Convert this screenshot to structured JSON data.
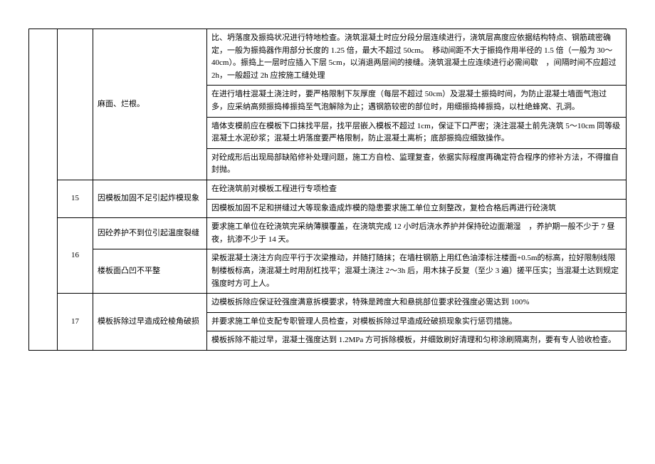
{
  "table": {
    "rows": [
      {
        "empty": "",
        "num": "",
        "issue": "麻面、烂根。",
        "content": "比、坍落度及振捣状况进行特地检查。浇筑混凝土时应分段分层连续进行，浇筑层高度应依据结构特点、钢筋疏密确定，一般为振捣器作用部分长度的 1.25 倍，最大不超过 50cm。　移动间距不大于振捣作用半径的 1.5 倍（一般为 30～40cm）。振捣上一层时应插入下层 5cm，以消退两层间的接缝。浇筑混凝土应连续进行必需间歇　，间隔时间不应超过 2h，一般超过 2h 应按施工缝处理",
        "emptyRowspan": 14,
        "numRowspan": 4,
        "issueRowspan": 4
      },
      {
        "content": "在进行墙柱混凝土浇注时，要严格限制下灰厚度（每层不超过 50cm）及混凝土振捣时间，为防止混凝土墙面气泡过多，应采纳高频振捣棒振捣至气泡解除为止；遇钢筋较密的部位时，用细振捣棒振捣，以杜绝蜂窝、孔洞。"
      },
      {
        "content": "墙体支模前应在模板下口抹找平层，找平层嵌入模板不超过 1cm，保证下口严密；浇注混凝土前先浇筑 5～10cm 同等级混凝土水泥砂浆；混凝土坍落度要严格限制，防止混凝土离析；底部振捣应细致操作。"
      },
      {
        "content": "对砼成形后出现局部缺陷修补处理问题，施工方自检、监理复查，依据实际程度再确定符合程序的修补方法，不得擅自封抛。"
      },
      {
        "num": "15",
        "issue": "因模板加固不足引起炸模现象",
        "content": "在砼浇筑前对模板工程进行专项检查",
        "numRowspan": 2,
        "issueRowspan": 2
      },
      {
        "content": "因模板加固不足和拼缝过大等现象造成炸模的隐患要求施工单位立刻整改，复检合格后再进行砼浇筑"
      },
      {
        "num": "16",
        "issue": "因砼养护不到位引起温度裂缝",
        "content": "要求施工单位在砼浇筑完采纳薄膜覆盖，在浇筑完成 12 小时后浇水养护并保持砼边面潮湿　，养护期一般不少于 7 昼夜，抗渗不少于 14 天。",
        "numRowspan": 2
      },
      {
        "issue": "楼板面凸凹不平整",
        "content": "梁板混凝土浇注方向应平行于次梁推动，并随打随抹；在墙柱钢筋上用红色油漆标注楼面+0.5m的标高，拉好限制线限制楼板标高，浇混凝土时用刮杠找平；混凝土浇注 2～3h 后，用木抹子反复（至少 3 遍）搓平压实；当混凝土达到规定强度时方可上人。"
      },
      {
        "num": "17",
        "issue": "模板拆除过早造成砼棱角破损",
        "content": "边模板拆除应保证砼强度满意拆模要求，特殊是跨度大和悬挑部位要求砼强度必需达到 100%",
        "numRowspan": 3,
        "issueRowspan": 3
      },
      {
        "content": "并要求施工单位支配专职管理人员检查，对模板拆除过早造成砼破损现象实行惩罚措施。"
      },
      {
        "content": "模板拆除不能过早，混凝土强度达到 1.2MPa 方可拆除模板，并细致刷好清理和匀称涂刷隔离剂，要有专人验收检查。"
      }
    ]
  }
}
